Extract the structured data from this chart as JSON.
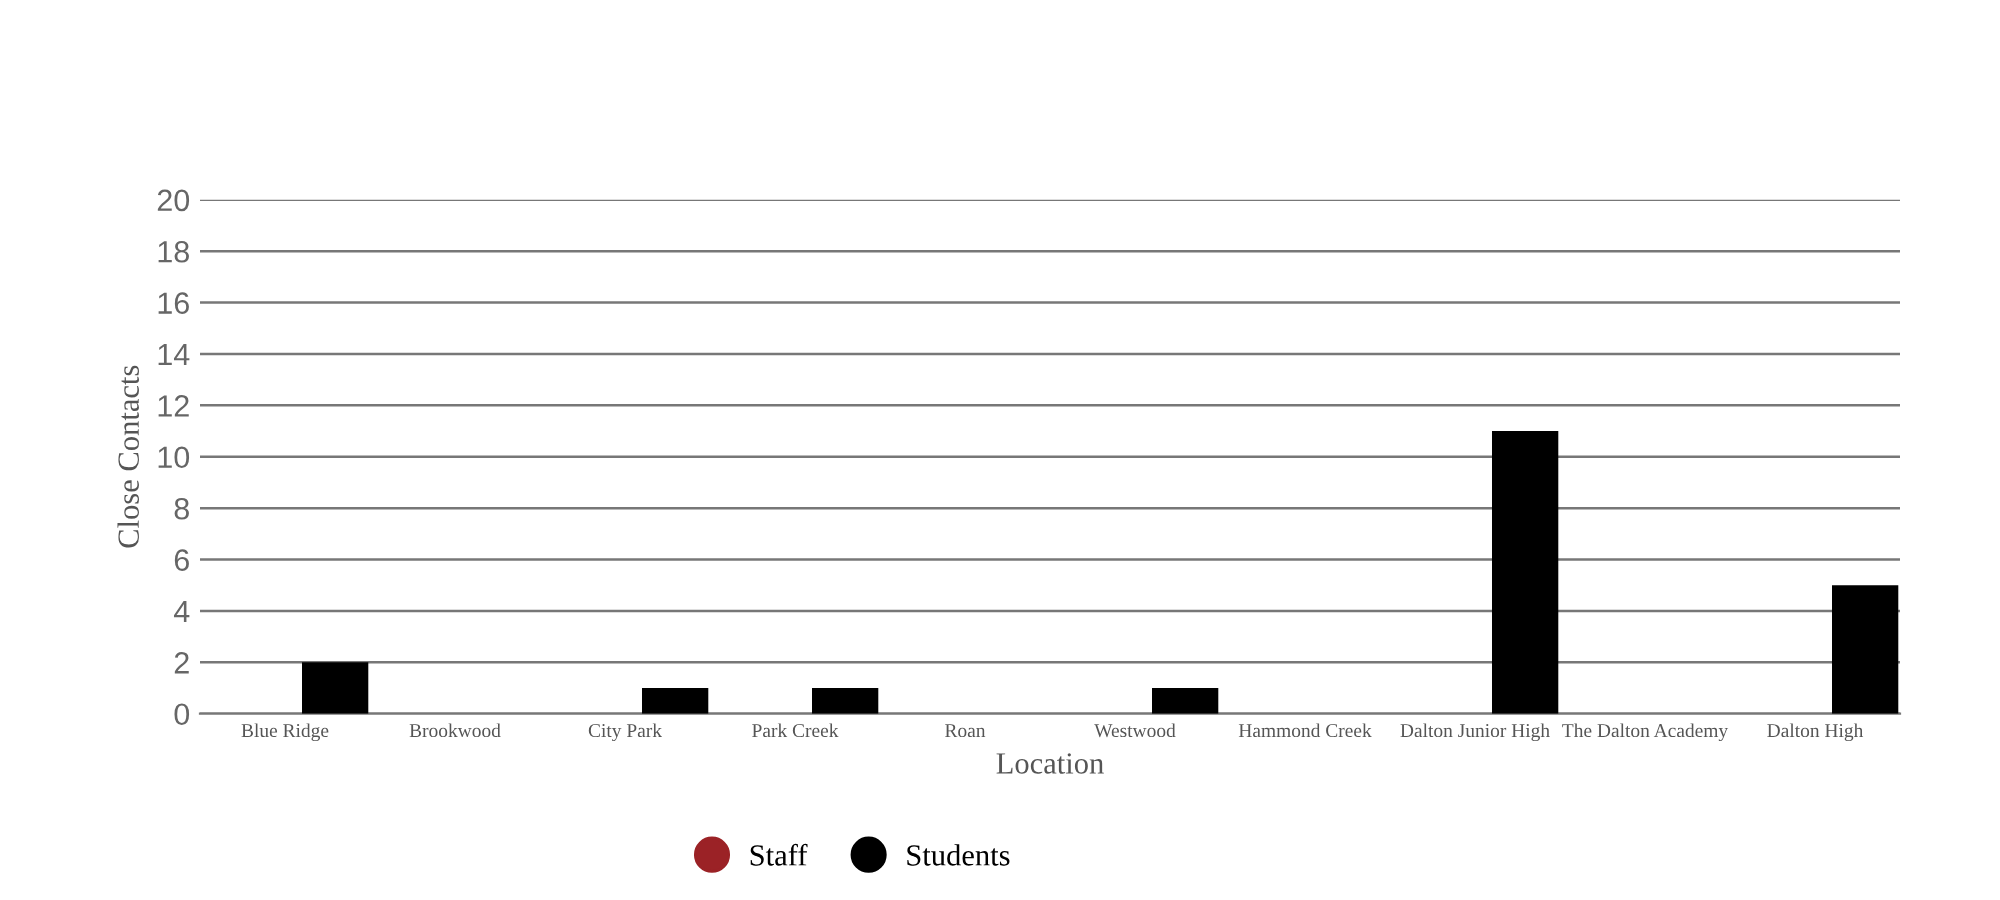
{
  "chart_data": {
    "type": "bar",
    "xlabel": "Location",
    "ylabel": "Close Contacts",
    "categories": [
      "Blue Ridge",
      "Brookwood",
      "City Park",
      "Park Creek",
      "Roan",
      "Westwood",
      "Hammond Creek",
      "Dalton Junior High",
      "The Dalton Academy",
      "Dalton High"
    ],
    "series": [
      {
        "name": "Staff",
        "color": "#9b2226",
        "values": [
          0,
          0,
          0,
          0,
          0,
          0,
          0,
          0,
          0,
          0
        ]
      },
      {
        "name": "Students",
        "color": "#000000",
        "values": [
          2,
          0,
          1,
          1,
          0,
          1,
          0,
          11,
          0,
          5
        ]
      }
    ],
    "ylim": [
      0,
      20
    ],
    "yticks": [
      0,
      2,
      4,
      6,
      8,
      10,
      12,
      14,
      16,
      18,
      20
    ],
    "grid": "y",
    "legend": "bottom"
  }
}
